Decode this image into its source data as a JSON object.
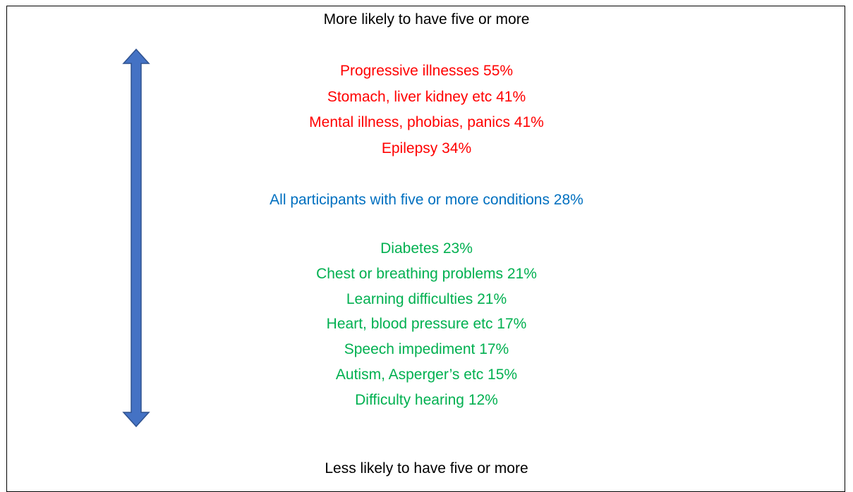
{
  "top_label": "More likely to have five or more",
  "higher": [
    "Progressive illnesses 55%",
    "Stomach, liver kidney etc 41%",
    "Mental illness, phobias, panics 41%",
    "Epilepsy 34%"
  ],
  "baseline": "All participants with five or more conditions 28%",
  "lower": [
    "Diabetes 23%",
    "Chest or breathing problems 21%",
    "Learning difficulties 21%",
    "Heart, blood pressure etc 17%",
    "Speech impediment 17%",
    "Autism, Asperger’s etc 15%",
    "Difficulty hearing 12%"
  ],
  "bottom_label": "Less likely to have five or more"
}
